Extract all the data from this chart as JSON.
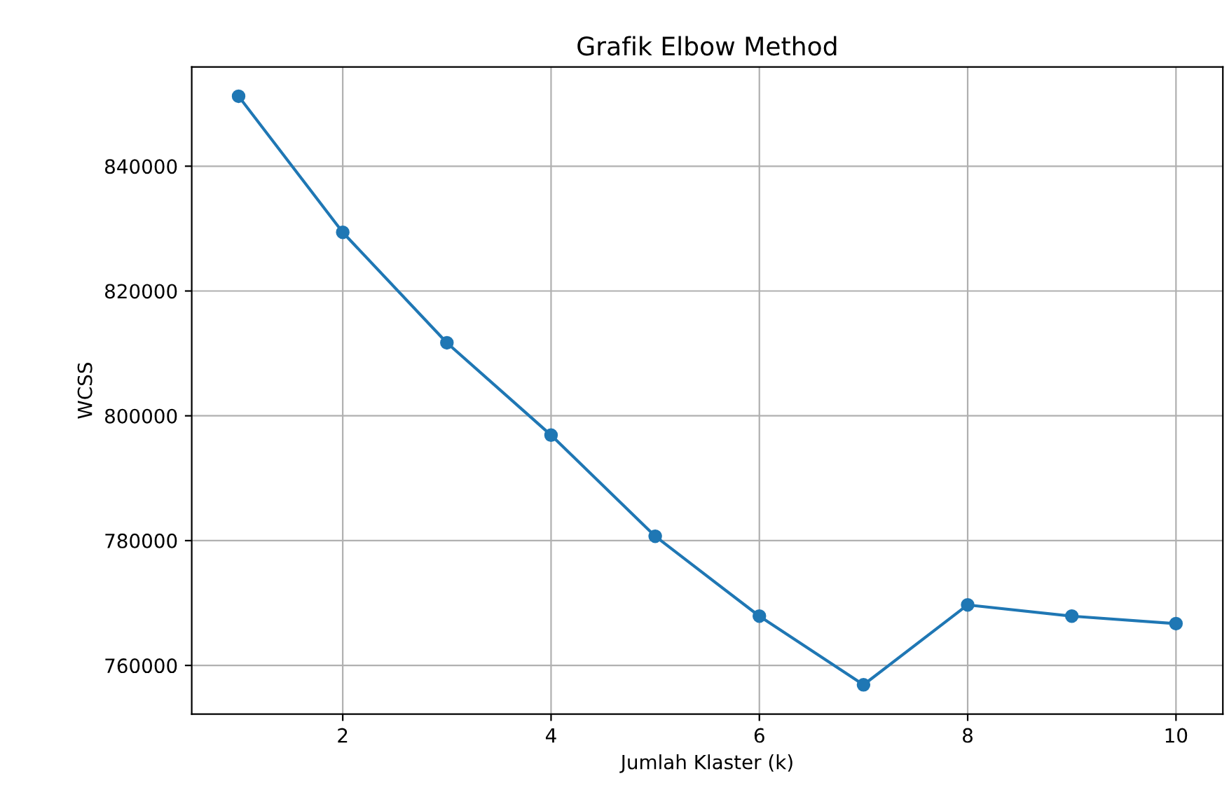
{
  "chart_data": {
    "type": "line",
    "title": "Grafik Elbow Method",
    "xlabel": "Jumlah Klaster (k)",
    "ylabel": "WCSS",
    "x": [
      1,
      2,
      3,
      4,
      5,
      6,
      7,
      8,
      9,
      10
    ],
    "series": [
      {
        "color": "#1f77b4",
        "values": [
          851200,
          829400,
          811700,
          796900,
          780700,
          767900,
          756900,
          769700,
          767900,
          766700
        ]
      }
    ],
    "xlim": [
      0.55,
      10.45
    ],
    "ylim": [
      752200,
      855900
    ],
    "xticks": [
      2,
      4,
      6,
      8,
      10
    ],
    "yticks": [
      760000,
      780000,
      800000,
      820000,
      840000
    ],
    "grid": true,
    "marker": "circle",
    "line_style": "solid"
  }
}
